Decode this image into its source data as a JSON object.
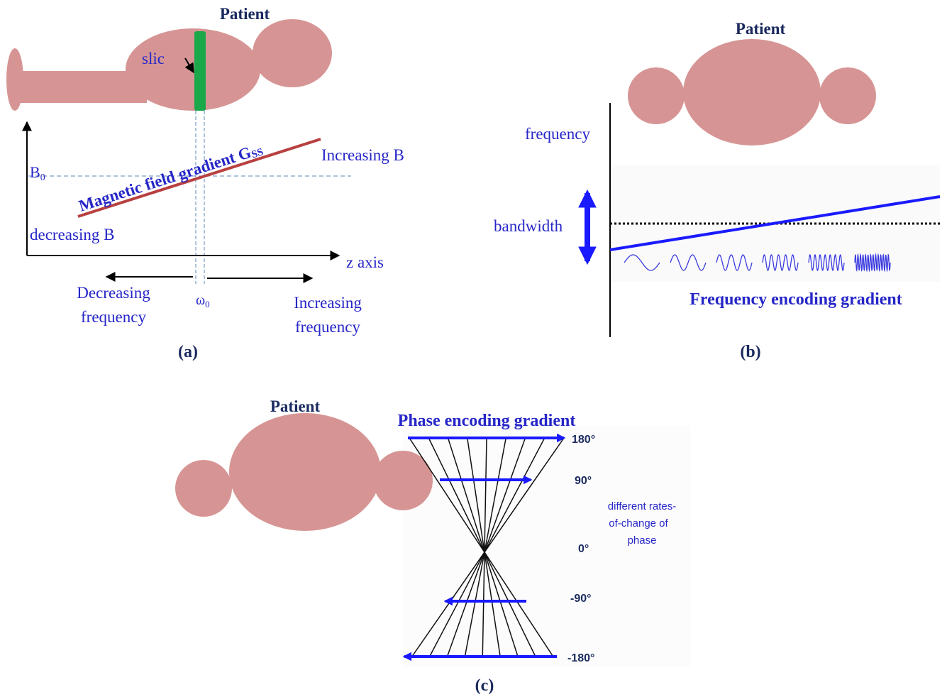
{
  "panels": [
    {
      "label": "(a)",
      "patient": "Patient",
      "slice": "slic",
      "gradient": {
        "text": "Magnetic field gradient G",
        "sub": "SS"
      },
      "b0": {
        "text": "B",
        "sub": "0"
      },
      "increasing_b": "Increasing B",
      "decreasing_b": "decreasing B",
      "axis": "z axis",
      "decreasing_frequency": [
        "Decreasing",
        "frequency"
      ],
      "omega": {
        "text": "ω",
        "sub": "0"
      },
      "increasing_frequency": [
        "Increasing",
        "frequency"
      ]
    },
    {
      "label": "(b)",
      "patient": "Patient",
      "frequency": "frequency",
      "bandwidth": "bandwidth",
      "caption": "Frequency encoding gradient"
    },
    {
      "label": "(c)",
      "patient": "Patient",
      "caption": "Phase encoding gradient",
      "phases": [
        "180°",
        "90°",
        "0°",
        "-90°",
        "-180°"
      ],
      "note": [
        "different rates-",
        "of-change of",
        "phase"
      ]
    }
  ]
}
